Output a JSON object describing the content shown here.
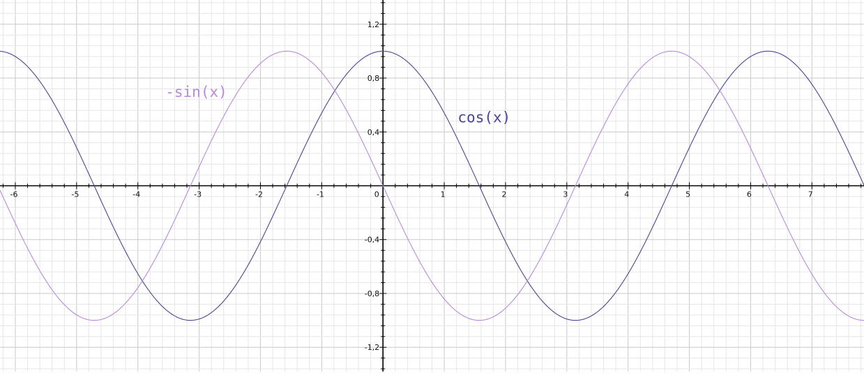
{
  "chart_data": {
    "type": "line",
    "title": "",
    "xlabel": "",
    "ylabel": "",
    "xlim": [
      -6.25,
      7.85
    ],
    "ylim": [
      -1.38,
      1.38
    ],
    "grid": true,
    "x_ticks": [
      {
        "value": -6,
        "label": "-6"
      },
      {
        "value": -5,
        "label": "-5"
      },
      {
        "value": -4,
        "label": "-4"
      },
      {
        "value": -3,
        "label": "-3"
      },
      {
        "value": -2,
        "label": "-2"
      },
      {
        "value": -1,
        "label": "-1"
      },
      {
        "value": 0,
        "label": "0"
      },
      {
        "value": 1,
        "label": "1"
      },
      {
        "value": 2,
        "label": "2"
      },
      {
        "value": 3,
        "label": "3"
      },
      {
        "value": 4,
        "label": "4"
      },
      {
        "value": 5,
        "label": "5"
      },
      {
        "value": 6,
        "label": "6"
      },
      {
        "value": 7,
        "label": "7"
      }
    ],
    "y_ticks": [
      {
        "value": 1.2,
        "label": "1,2"
      },
      {
        "value": 0.8,
        "label": "0,8"
      },
      {
        "value": 0.4,
        "label": "0,4"
      },
      {
        "value": -0.4,
        "label": "-0,4"
      },
      {
        "value": -0.8,
        "label": "-0,8"
      },
      {
        "value": -1.2,
        "label": "-1,2"
      }
    ],
    "series": [
      {
        "name": "cos(x)",
        "function": "cos",
        "color": "#4b4597",
        "label_at": [
          1.22,
          0.47
        ]
      },
      {
        "name": "-sin(x)",
        "function": "neg_sin",
        "color": "#b989dd",
        "label_at": [
          -3.55,
          0.66
        ]
      }
    ]
  }
}
